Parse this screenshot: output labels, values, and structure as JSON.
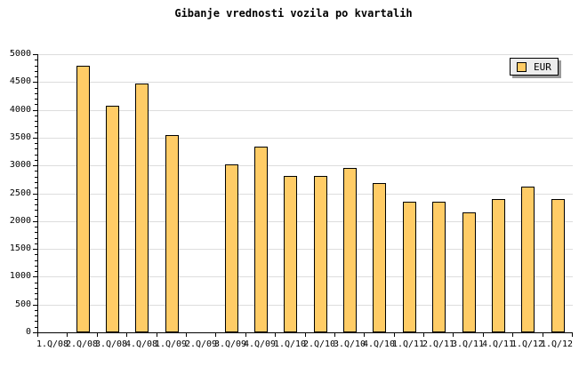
{
  "title": "Gibanje vrednosti vozila po kvartalih",
  "legend": {
    "label": "EUR",
    "swatch_color": "#FFCC66"
  },
  "colors": {
    "background": "#FFFFFF",
    "bar_fill": "#FFCC66",
    "bar_border": "#000000",
    "gridline": "#DDDDDD",
    "axis": "#000000",
    "legend_bg": "#ECECEC",
    "legend_shadow": "#999999",
    "text": "#000000"
  },
  "chart_data": {
    "type": "bar",
    "title": "Gibanje vrednosti vozila po kvartalih",
    "categories": [
      "1.Q/08",
      "2.Q/08",
      "3.Q/08",
      "4.Q/08",
      "1.Q/09",
      "2.Q/09",
      "3.Q/09",
      "4.Q/09",
      "1.Q/10",
      "2.Q/10",
      "3.Q/10",
      "4.Q/10",
      "1.Q/11",
      "2.Q/11",
      "3.Q/11",
      "4.Q/11",
      "1.Q/12",
      "1.Q/12"
    ],
    "series": [
      {
        "name": "EUR",
        "values": [
          null,
          4800,
          4080,
          4470,
          3540,
          null,
          3020,
          3340,
          2810,
          2810,
          2960,
          2680,
          2350,
          2350,
          2150,
          2400,
          2620,
          2400
        ]
      }
    ],
    "xlabel": "",
    "ylabel": "",
    "ylim": [
      0,
      5000
    ],
    "yticks": [
      0,
      500,
      1000,
      1500,
      2000,
      2500,
      3000,
      3500,
      4000,
      4500,
      5000
    ],
    "y_minor_tick_step": 100,
    "grid": "horizontal-major",
    "legend_position": "top-right",
    "missing_categories": [
      "1.Q/08",
      "2.Q/09"
    ]
  }
}
